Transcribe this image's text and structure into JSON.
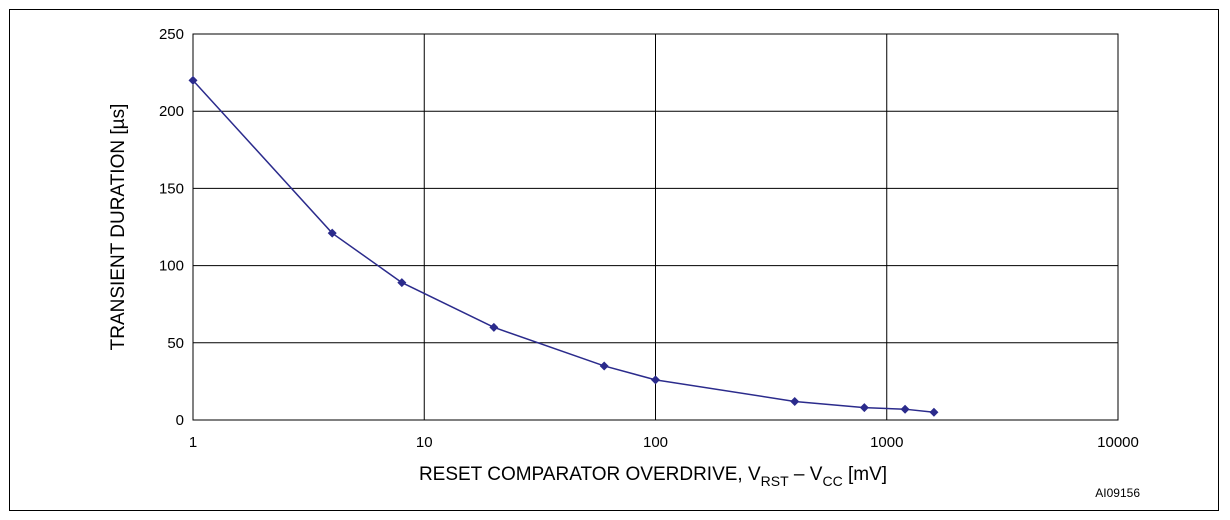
{
  "chart_data": {
    "type": "line",
    "x_scale": "log",
    "xlim": [
      1,
      10000
    ],
    "ylim": [
      0,
      250
    ],
    "grid": true,
    "x_ticks": [
      "1",
      "10",
      "100",
      "1000",
      "10000"
    ],
    "y_ticks": [
      "0",
      "50",
      "100",
      "150",
      "200",
      "250"
    ],
    "xlabel": {
      "main": "RESET COMPARATOR OVERDRIVE, V",
      "sub1": "RST",
      "mid": " – V",
      "sub2": "CC",
      "tail": " [mV]"
    },
    "ylabel": "TRANSIENT DURATION [µs]",
    "figure_ref": "AI09156",
    "series": [
      {
        "color": "#2b2b8c",
        "marker": "diamond",
        "x": [
          1,
          4,
          8,
          20,
          60,
          100,
          400,
          800,
          1200,
          1600
        ],
        "y": [
          220,
          121,
          89,
          60,
          35,
          26,
          12,
          8,
          7,
          5
        ]
      }
    ]
  }
}
